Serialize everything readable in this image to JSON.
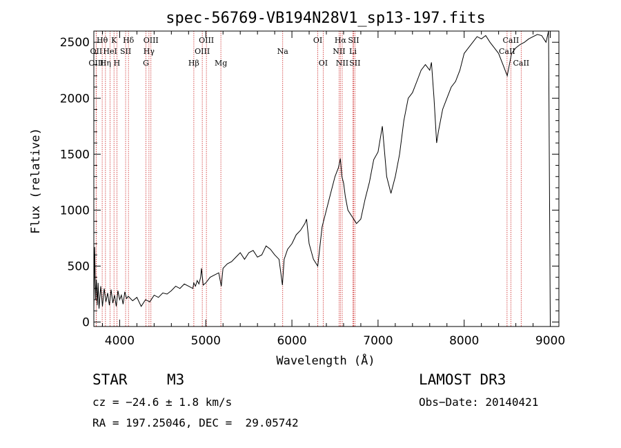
{
  "chart_data": {
    "type": "line",
    "title": "spec-56769-VB194N28V1_sp13-197.fits",
    "xlabel": "Wavelength (Å)",
    "ylabel": "Flux (relative)",
    "xlim": [
      3700,
      9100
    ],
    "ylim": [
      -40,
      2600
    ],
    "xticks": [
      4000,
      5000,
      6000,
      7000,
      8000,
      9000
    ],
    "yticks": [
      0,
      500,
      1000,
      1500,
      2000,
      2500
    ],
    "series": [
      {
        "name": "flux",
        "x": [
          3700,
          3710,
          3720,
          3730,
          3740,
          3750,
          3760,
          3780,
          3800,
          3820,
          3840,
          3860,
          3880,
          3900,
          3920,
          3940,
          3960,
          3980,
          4000,
          4020,
          4040,
          4060,
          4080,
          4100,
          4150,
          4200,
          4250,
          4300,
          4350,
          4400,
          4450,
          4500,
          4550,
          4600,
          4650,
          4700,
          4750,
          4800,
          4850,
          4860,
          4880,
          4900,
          4920,
          4940,
          4950,
          4970,
          5000,
          5050,
          5100,
          5150,
          5180,
          5200,
          5250,
          5300,
          5350,
          5400,
          5450,
          5500,
          5550,
          5600,
          5650,
          5700,
          5750,
          5800,
          5850,
          5890,
          5910,
          5950,
          6000,
          6050,
          6100,
          6150,
          6170,
          6200,
          6250,
          6300,
          6350,
          6400,
          6450,
          6500,
          6540,
          6563,
          6580,
          6600,
          6620,
          6650,
          6700,
          6750,
          6800,
          6850,
          6900,
          6950,
          7000,
          7050,
          7100,
          7150,
          7200,
          7250,
          7300,
          7350,
          7400,
          7450,
          7500,
          7550,
          7600,
          7620,
          7650,
          7680,
          7700,
          7750,
          7800,
          7850,
          7900,
          7950,
          8000,
          8050,
          8100,
          8150,
          8200,
          8250,
          8300,
          8350,
          8400,
          8450,
          8500,
          8550,
          8600,
          8650,
          8700,
          8750,
          8800,
          8850,
          8900,
          8950,
          8980,
          9000
        ],
        "y": [
          100,
          670,
          200,
          380,
          150,
          350,
          120,
          320,
          140,
          300,
          180,
          260,
          150,
          290,
          170,
          240,
          140,
          280,
          200,
          240,
          160,
          270,
          210,
          230,
          190,
          220,
          140,
          200,
          180,
          240,
          220,
          260,
          250,
          280,
          320,
          300,
          340,
          320,
          300,
          350,
          320,
          370,
          340,
          400,
          480,
          330,
          350,
          400,
          420,
          440,
          320,
          480,
          520,
          540,
          580,
          620,
          560,
          620,
          640,
          580,
          600,
          680,
          650,
          600,
          560,
          330,
          560,
          650,
          700,
          780,
          820,
          880,
          920,
          700,
          560,
          500,
          850,
          1000,
          1150,
          1300,
          1380,
          1460,
          1300,
          1240,
          1120,
          1000,
          940,
          880,
          920,
          1100,
          1250,
          1450,
          1520,
          1750,
          1300,
          1150,
          1300,
          1500,
          1800,
          2000,
          2050,
          2150,
          2250,
          2300,
          2250,
          2320,
          2000,
          1600,
          1700,
          1900,
          2000,
          2100,
          2150,
          2250,
          2400,
          2450,
          2500,
          2550,
          2530,
          2560,
          2500,
          2450,
          2400,
          2300,
          2200,
          2400,
          2450,
          2480,
          2500,
          2530,
          2550,
          2570,
          2560,
          2500,
          2600,
          0
        ]
      }
    ],
    "line_markers": [
      {
        "label": "Hθ",
        "x": 3797,
        "row": 1
      },
      {
        "label": "OII",
        "x": 3727,
        "row": 2
      },
      {
        "label": "OIII",
        "x": 3727,
        "row": 3
      },
      {
        "label": "K",
        "x": 3934,
        "row": 1
      },
      {
        "label": "HeI",
        "x": 3889,
        "row": 2
      },
      {
        "label": "Hη",
        "x": 3835,
        "row": 3
      },
      {
        "label": "Hδ",
        "x": 4102,
        "row": 1
      },
      {
        "label": "SII",
        "x": 4069,
        "row": 2
      },
      {
        "label": "H",
        "x": 3968,
        "row": 3
      },
      {
        "label": "OIII",
        "x": 4363,
        "row": 1
      },
      {
        "label": "Hγ",
        "x": 4340,
        "row": 2
      },
      {
        "label": "G",
        "x": 4305,
        "row": 3
      },
      {
        "label": "OIII",
        "x": 5007,
        "row": 1
      },
      {
        "label": "OIII",
        "x": 4959,
        "row": 2
      },
      {
        "label": "Hβ",
        "x": 4861,
        "row": 3
      },
      {
        "label": "Mg",
        "x": 5175,
        "row": 3
      },
      {
        "label": "Na",
        "x": 5893,
        "row": 2
      },
      {
        "label": "OI",
        "x": 6300,
        "row": 1
      },
      {
        "label": "OI",
        "x": 6363,
        "row": 3
      },
      {
        "label": "Hα",
        "x": 6563,
        "row": 1
      },
      {
        "label": "SII",
        "x": 6716,
        "row": 1
      },
      {
        "label": "NII",
        "x": 6548,
        "row": 2
      },
      {
        "label": "Li",
        "x": 6708,
        "row": 2
      },
      {
        "label": "NII",
        "x": 6584,
        "row": 3
      },
      {
        "label": "SII",
        "x": 6731,
        "row": 3
      },
      {
        "label": "CaII",
        "x": 8542,
        "row": 1
      },
      {
        "label": "CaII",
        "x": 8498,
        "row": 2
      },
      {
        "label": "CaII",
        "x": 8662,
        "row": 3
      }
    ]
  },
  "info": {
    "class": "STAR",
    "subclass": "M3",
    "survey": "LAMOST DR3",
    "cz": "cz = −24.6 ± 1.8 km/s",
    "obs_date": "Obs−Date: 20140421",
    "coords": "RA = 197.25046, DEC =  29.05742"
  },
  "colors": {
    "marker_line": "#cc2222",
    "spectrum": "#000000"
  }
}
